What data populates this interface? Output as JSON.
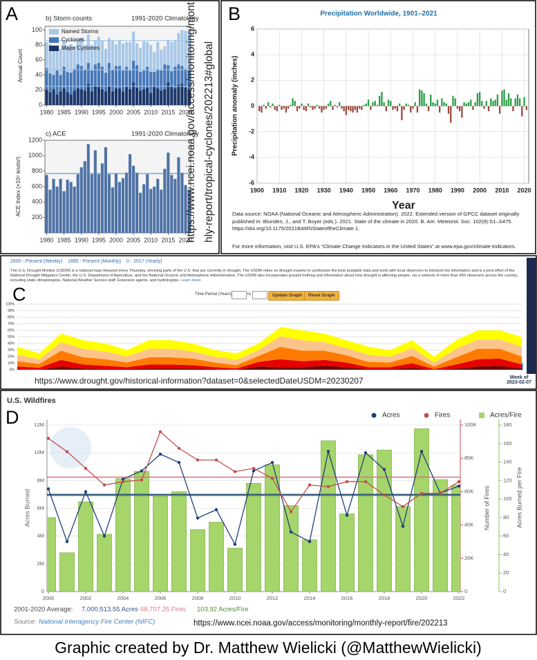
{
  "panel_labels": [
    "A",
    "B",
    "C",
    "D"
  ],
  "caption": "Graphic created by Dr. Matthew Wielicki (@MatthewWielicki)",
  "chart_data": [
    {
      "type": "bar",
      "title": "b) Storm counts",
      "subtitle": "1991-2020 Climatology",
      "ylabel": "Annual Count",
      "x": [
        1980,
        1981,
        1982,
        1983,
        1984,
        1985,
        1986,
        1987,
        1988,
        1989,
        1990,
        1991,
        1992,
        1993,
        1994,
        1995,
        1996,
        1997,
        1998,
        1999,
        2000,
        2001,
        2002,
        2003,
        2004,
        2005,
        2006,
        2007,
        2008,
        2009,
        2010,
        2011,
        2012,
        2013,
        2014,
        2015,
        2016,
        2017,
        2018,
        2019,
        2020,
        2021
      ],
      "xlim": [
        1979.5,
        2021.5
      ],
      "xticks": [
        1980,
        1985,
        1990,
        1995,
        2000,
        2005,
        2010,
        2015,
        2020
      ],
      "ylim": [
        0,
        105
      ],
      "yticks": [
        0,
        20,
        40,
        60,
        80,
        100
      ],
      "grid": false,
      "climatology_color": "#9cc3e6",
      "series": [
        {
          "name": "Named Storms",
          "color": "#a8c8e8",
          "climatology": 86,
          "values": [
            84,
            81,
            76,
            73,
            75,
            86,
            79,
            81,
            78,
            87,
            90,
            80,
            94,
            80,
            86,
            91,
            86,
            75,
            89,
            86,
            81,
            86,
            82,
            84,
            84,
            98,
            82,
            76,
            85,
            84,
            80,
            71,
            84,
            74,
            78,
            87,
            84,
            86,
            96,
            100,
            99,
            98
          ]
        },
        {
          "name": "Cyclones",
          "color": "#4677b8",
          "climatology": 47,
          "values": [
            49,
            42,
            40,
            46,
            40,
            51,
            44,
            43,
            48,
            54,
            52,
            47,
            56,
            46,
            54,
            56,
            51,
            43,
            56,
            47,
            52,
            52,
            46,
            51,
            46,
            59,
            53,
            44,
            46,
            51,
            44,
            44,
            47,
            46,
            54,
            53,
            45,
            51,
            54,
            52,
            48,
            47
          ]
        },
        {
          "name": "Major Cyclones",
          "color": "#1c3668",
          "climatology": 25,
          "values": [
            20,
            17,
            21,
            14,
            18,
            22,
            17,
            14,
            19,
            22,
            21,
            19,
            28,
            18,
            26,
            24,
            21,
            18,
            25,
            18,
            22,
            22,
            18,
            24,
            21,
            30,
            23,
            19,
            21,
            23,
            16,
            24,
            22,
            19,
            21,
            30,
            24,
            22,
            27,
            28,
            23,
            20
          ]
        }
      ]
    },
    {
      "type": "bar",
      "title": "c) ACE",
      "subtitle": "1991-2020 Climatology",
      "ylabel": "ACE Index (×10⁴ knots²)",
      "x": [
        1980,
        1981,
        1982,
        1983,
        1984,
        1985,
        1986,
        1987,
        1988,
        1989,
        1990,
        1991,
        1992,
        1993,
        1994,
        1995,
        1996,
        1997,
        1998,
        1999,
        2000,
        2001,
        2002,
        2003,
        2004,
        2005,
        2006,
        2007,
        2008,
        2009,
        2010,
        2011,
        2012,
        2013,
        2014,
        2015,
        2016,
        2017,
        2018,
        2019,
        2020,
        2021
      ],
      "xlim": [
        1979.5,
        2021.5
      ],
      "xticks": [
        1980,
        1985,
        1990,
        1995,
        2000,
        2005,
        2010,
        2015,
        2020
      ],
      "ylim": [
        0,
        1200
      ],
      "yticks": [
        200,
        400,
        600,
        800,
        1000,
        1200
      ],
      "grid": false,
      "climatology_color": "#4f8fd0",
      "series": [
        {
          "color": "#4e72a6",
          "climatology": 770,
          "values": [
            750,
            560,
            700,
            600,
            700,
            540,
            690,
            660,
            600,
            760,
            850,
            930,
            1150,
            760,
            1070,
            760,
            900,
            1110,
            760,
            590,
            770,
            660,
            710,
            780,
            1020,
            870,
            780,
            520,
            630,
            760,
            570,
            600,
            700,
            560,
            830,
            1040,
            750,
            700,
            980,
            780,
            620,
            560
          ]
        }
      ],
      "source_url": "https://www.ncei.noaa.gov/access/monitoring/monthly-report/tropical-cyclones/202213#global"
    },
    {
      "type": "bar",
      "title": "Precipitation Worldwide, 1901–2021",
      "xlabel": "Year",
      "ylabel": "Precipitation anomaly (inches)",
      "x": [
        1901,
        1902,
        1903,
        1904,
        1905,
        1906,
        1907,
        1908,
        1909,
        1910,
        1911,
        1912,
        1913,
        1914,
        1915,
        1916,
        1917,
        1918,
        1919,
        1920,
        1921,
        1922,
        1923,
        1924,
        1925,
        1926,
        1927,
        1928,
        1929,
        1930,
        1931,
        1932,
        1933,
        1934,
        1935,
        1936,
        1937,
        1938,
        1939,
        1940,
        1941,
        1942,
        1943,
        1944,
        1945,
        1946,
        1947,
        1948,
        1949,
        1950,
        1951,
        1952,
        1953,
        1954,
        1955,
        1956,
        1957,
        1958,
        1959,
        1960,
        1961,
        1962,
        1963,
        1964,
        1965,
        1966,
        1967,
        1968,
        1969,
        1970,
        1971,
        1972,
        1973,
        1974,
        1975,
        1976,
        1977,
        1978,
        1979,
        1980,
        1981,
        1982,
        1983,
        1984,
        1985,
        1986,
        1987,
        1988,
        1989,
        1990,
        1991,
        1992,
        1993,
        1994,
        1995,
        1996,
        1997,
        1998,
        1999,
        2000,
        2001,
        2002,
        2003,
        2004,
        2005,
        2006,
        2007,
        2008,
        2009,
        2010,
        2011,
        2012,
        2013,
        2014,
        2015,
        2016,
        2017,
        2018,
        2019,
        2020,
        2021
      ],
      "values": [
        -0.4,
        -0.5,
        0.1,
        -0.2,
        0.3,
        -0.1,
        0.2,
        -0.3,
        -0.4,
        0.1,
        -0.3,
        -0.2,
        -0.5,
        -0.2,
        0.1,
        0.6,
        0.4,
        -0.4,
        -0.2,
        0.2,
        -0.3,
        -0.4,
        0.2,
        -0.1,
        -0.3,
        -0.2,
        0.1,
        -0.2,
        -0.5,
        -0.3,
        -0.2,
        0.2,
        0.4,
        -0.3,
        0.1,
        -0.1,
        0.3,
        -0.2,
        -0.4,
        -0.7,
        -0.3,
        -0.4,
        -0.5,
        -0.3,
        -0.5,
        -0.2,
        -0.3,
        0.1,
        0.2,
        0.5,
        -0.3,
        0.3,
        0.4,
        0.1,
        0.8,
        1.1,
        0.3,
        -0.4,
        0.5,
        0.4,
        -0.3,
        -0.2,
        -0.4,
        0.2,
        -1.1,
        -0.3,
        0.2,
        0.1,
        -0.5,
        -0.2,
        0.3,
        -0.5,
        1.3,
        1.2,
        1.0,
        0.2,
        -0.4,
        0.9,
        0.3,
        0.2,
        0.5,
        -0.5,
        0.6,
        0.3,
        0.2,
        -0.6,
        -1.3,
        0.8,
        0.6,
        -0.2,
        -0.4,
        -0.9,
        0.3,
        0.2,
        0.3,
        0.5,
        -0.3,
        0.3,
        1.0,
        1.1,
        0.4,
        -0.2,
        0.4,
        -0.4,
        0.6,
        0.4,
        0.5,
        0.9,
        -0.6,
        1.2,
        1.3,
        0.5,
        1.0,
        0.6,
        -0.4,
        0.6,
        0.9,
        0.6,
        -0.8,
        0.7,
        -0.3
      ],
      "positive_color": "#2e9e48",
      "negative_color": "#9c4a3c",
      "xlim": [
        1900,
        2022
      ],
      "xticks": [
        1900,
        1910,
        1920,
        1930,
        1940,
        1950,
        1960,
        1970,
        1980,
        1990,
        2000,
        2010,
        2020
      ],
      "ylim": [
        -6,
        6
      ],
      "yticks": [
        -6,
        -4,
        -2,
        0,
        2,
        4,
        6
      ],
      "grid": true,
      "source_note": "Data source: NOAA (National Oceanic and Atmospheric Administration). 2022. Extended version of GPCC dataset originally published in: Blunden, J., and T. Boyer (eds.). 2021. State of the climate in 2020. B. Am. Meteorol. Soc. 102(8):S1–S475. https://doi.org/10.1175/2021BAMSStateoftheClimate.1.",
      "more_info": "For more information, visit U.S. EPA's “Climate Change Indicators in the United States” at www.epa.gov/climate-indicators."
    },
    {
      "type": "stacked_area",
      "tabs": [
        "2000 - Present (Weekly)",
        "1895 - Present (Monthly)",
        "0 - 2017 (Yearly)"
      ],
      "description": "The U.S. Drought Monitor (USDM) is a national map released every Thursday, showing parts of the U.S. that are currently in drought. The USDM relies on drought experts to synthesize the best available data and work with local observers to interpret the information and is a joint effort of the National Drought Mitigation Center, the U.S. Department of Agriculture, and the National Oceanic and Atmospheric Administration. The USDM also incorporates ground truthing and information about how drought is affecting people, via a network of more than 450 observers across the country, including state climatologists, National Weather Service staff, Extension agents, and hydrologists.",
      "link": "Learn more.",
      "time_period_label": "Time Period (Years):",
      "to_label": "to",
      "buttons": [
        "Update Graph",
        "Reset Graph"
      ],
      "x": [
        2000,
        2001,
        2002,
        2003,
        2004,
        2005,
        2006,
        2007,
        2008,
        2009,
        2010,
        2011,
        2012,
        2013,
        2014,
        2015,
        2016,
        2017,
        2018,
        2019,
        2020,
        2021,
        2022,
        2023
      ],
      "xlim": [
        2000,
        2023
      ],
      "ylim": [
        0,
        100
      ],
      "grid": true,
      "yticks": [
        {
          "value": 0,
          "label": "0%"
        },
        {
          "value": 10,
          "label": "10%"
        },
        {
          "value": 20,
          "label": "20%"
        },
        {
          "value": 30,
          "label": "30%"
        },
        {
          "value": 40,
          "label": "40%"
        },
        {
          "value": 50,
          "label": "50%"
        },
        {
          "value": 60,
          "label": "60%"
        },
        {
          "value": 70,
          "label": "70%"
        },
        {
          "value": 80,
          "label": "80%"
        },
        {
          "value": 90,
          "label": "90%"
        },
        {
          "value": 100,
          "label": "100%"
        }
      ],
      "series": [
        {
          "color": "#730000",
          "values": [
            1,
            0,
            5,
            2,
            1,
            1,
            2,
            2,
            2,
            1,
            0,
            5,
            4,
            4,
            6,
            4,
            1,
            1,
            3,
            0,
            2,
            5,
            6,
            2
          ]
        },
        {
          "color": "#e60000",
          "values": [
            4,
            3,
            10,
            6,
            5,
            3,
            6,
            6,
            5,
            3,
            2,
            7,
            12,
            9,
            9,
            7,
            3,
            3,
            7,
            1,
            6,
            11,
            11,
            6
          ]
        },
        {
          "color": "#ff7a00",
          "values": [
            8,
            6,
            14,
            11,
            10,
            7,
            11,
            11,
            10,
            7,
            5,
            9,
            19,
            16,
            14,
            11,
            8,
            7,
            11,
            4,
            11,
            16,
            15,
            12
          ]
        },
        {
          "color": "#fcc48a",
          "values": [
            10,
            7,
            13,
            13,
            12,
            9,
            13,
            13,
            11,
            9,
            8,
            9,
            16,
            16,
            13,
            11,
            11,
            9,
            12,
            6,
            13,
            14,
            14,
            15
          ]
        },
        {
          "color": "#ffff00",
          "values": [
            12,
            9,
            13,
            13,
            12,
            10,
            13,
            13,
            12,
            10,
            10,
            10,
            14,
            15,
            13,
            12,
            12,
            10,
            12,
            9,
            13,
            14,
            14,
            15
          ]
        }
      ],
      "date_label": "Week of 2023-02-07",
      "source_url": "https://www.drought.gov/historical-information?dataset=0&selectedDateUSDM=20230207"
    },
    {
      "type": "bar_line",
      "title": "U.S. Wildfires",
      "ylabel": "Acres Burned",
      "y2label": "Number of Fires",
      "y3label": "Acres Burned per Fire",
      "x": [
        2000,
        2001,
        2002,
        2003,
        2004,
        2005,
        2006,
        2007,
        2008,
        2009,
        2010,
        2011,
        2012,
        2013,
        2014,
        2015,
        2016,
        2017,
        2018,
        2019,
        2020,
        2021,
        2022
      ],
      "xlim": [
        2000,
        2022
      ],
      "xticks": [
        2000,
        2002,
        2004,
        2006,
        2008,
        2010,
        2012,
        2014,
        2016,
        2018,
        2020,
        2022
      ],
      "ylim": [
        0,
        12000000
      ],
      "yticks": [
        0,
        {
          "value": 2000000,
          "label": "2M"
        },
        {
          "value": 4000000,
          "label": "4M"
        },
        {
          "value": 6000000,
          "label": "6M"
        },
        {
          "value": 8000000,
          "label": "8M"
        },
        {
          "value": 10000000,
          "label": "10M"
        },
        {
          "value": 12000000,
          "label": "12M"
        }
      ],
      "y2lim": [
        0,
        100000
      ],
      "y2ticks": [
        0,
        {
          "value": 20000,
          "label": "20K"
        },
        {
          "value": 40000,
          "label": "40K"
        },
        {
          "value": 60000,
          "label": "60K"
        },
        {
          "value": 80000,
          "label": "80K"
        },
        {
          "value": 100000,
          "label": "100K"
        }
      ],
      "y3lim": [
        0,
        180
      ],
      "y3ticks": [
        0,
        20,
        40,
        60,
        80,
        100,
        120,
        140,
        160,
        180
      ],
      "grid": true,
      "series": [
        {
          "name": "Acres",
          "type": "line",
          "axis": "y",
          "color": "#1f3f7a",
          "average_color": "#2c4f8c",
          "average": {
            "value": 7000513.55,
            "label": "7,000,513.55 Acres"
          },
          "values": [
            7400000,
            3600000,
            7200000,
            4000000,
            8100000,
            8700000,
            9900000,
            9300000,
            5300000,
            5900000,
            3400000,
            8700000,
            9300000,
            4300000,
            3600000,
            10100000,
            5500000,
            10000000,
            8800000,
            4700000,
            10100000,
            7100000,
            7600000
          ]
        },
        {
          "name": "Fires",
          "type": "line",
          "axis": "y2",
          "color": "#c0504d",
          "average_color": "#d9768a",
          "average": {
            "value": 68707.25,
            "label": "68,707.25 Fires"
          },
          "values": [
            92000,
            84000,
            74000,
            64000,
            66000,
            67000,
            96000,
            86000,
            79000,
            79000,
            72000,
            74000,
            68000,
            48000,
            64000,
            63000,
            66000,
            66000,
            58000,
            51000,
            59000,
            59000,
            66000
          ]
        },
        {
          "name": "Acres/Fire",
          "type": "bar",
          "axis": "y3",
          "color": "#a6d56b",
          "average_color": "#4d8a2e",
          "average": {
            "value": 103.92,
            "label": "103.92 Acres/Fire"
          },
          "values": [
            80,
            42,
            97,
            62,
            122,
            130,
            103,
            108,
            67,
            75,
            47,
            117,
            137,
            93,
            56,
            163,
            84,
            148,
            153,
            92,
            176,
            121,
            115
          ]
        }
      ],
      "average_title": "2001-2020 Average:",
      "source_label": "Source:",
      "source": "National Interagency Fire Center (NIFC)",
      "source_url": "https://www.ncei.noaa.gov/access/monitoring/monthly-report/fire/202213"
    }
  ]
}
